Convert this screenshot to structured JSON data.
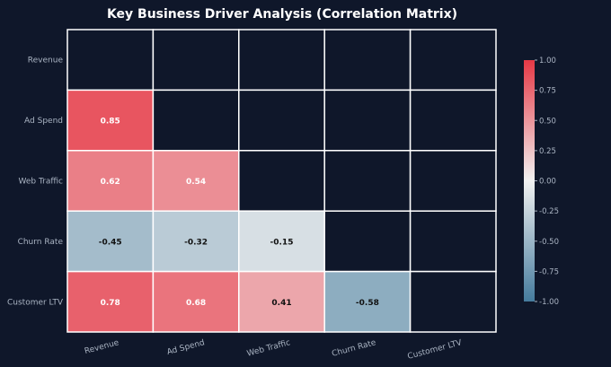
{
  "chart_data": {
    "type": "heatmap",
    "title": "Key Business Driver Analysis (Correlation Matrix)",
    "variables": [
      "Revenue",
      "Ad Spend",
      "Web Traffic",
      "Churn Rate",
      "Customer LTV"
    ],
    "matrix": [
      [
        null,
        null,
        null,
        null,
        null
      ],
      [
        0.85,
        null,
        null,
        null,
        null
      ],
      [
        0.62,
        0.54,
        null,
        null,
        null
      ],
      [
        -0.45,
        -0.32,
        -0.15,
        null,
        null
      ],
      [
        0.78,
        0.68,
        0.41,
        -0.58,
        null
      ]
    ],
    "mask": "upper triangle including diagonal",
    "value_range": [
      -1.0,
      1.0
    ],
    "colorbar": {
      "ticks": [
        "1.00",
        "0.75",
        "0.50",
        "0.25",
        "0.00",
        "-0.25",
        "-0.50",
        "-0.75",
        "-1.00"
      ],
      "tick_values": [
        1.0,
        0.75,
        0.5,
        0.25,
        0.0,
        -0.25,
        -0.5,
        -0.75,
        -1.0
      ],
      "placement": "right"
    },
    "colors": {
      "positive": "#e63946",
      "neutral": "#f1f1f1",
      "negative": "#457b9d",
      "masked_cell": "#0f172a",
      "grid_line": "#ffffff",
      "background": "#0f172a"
    }
  }
}
